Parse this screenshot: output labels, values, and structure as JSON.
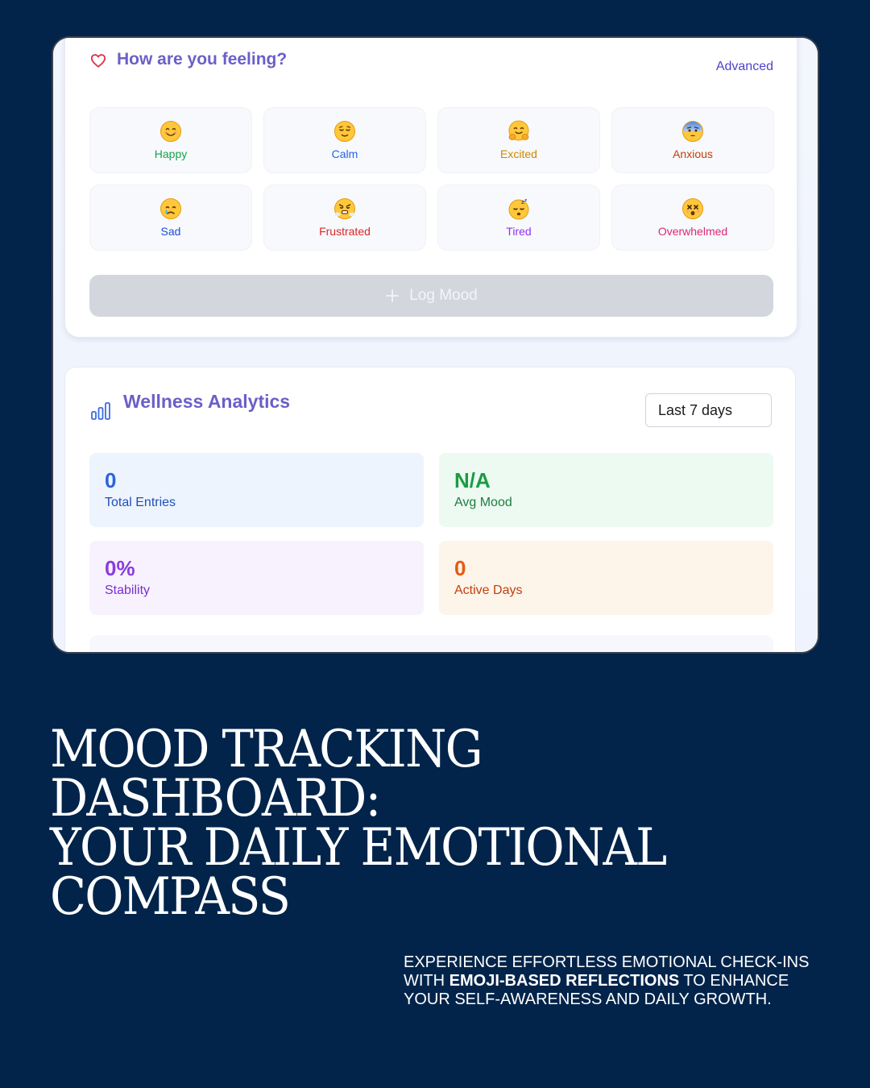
{
  "mood": {
    "title": "How are you feeling?",
    "advanced_label": "Advanced",
    "options": [
      {
        "label": "Happy",
        "icon": "smiling-face-icon",
        "color": "#16a34a",
        "emoji": "😊"
      },
      {
        "label": "Calm",
        "icon": "relieved-face-icon",
        "color": "#2563eb",
        "emoji": "😌"
      },
      {
        "label": "Excited",
        "icon": "hugging-face-icon",
        "color": "#ca8a04",
        "emoji": "🤗"
      },
      {
        "label": "Anxious",
        "icon": "anxious-face-icon",
        "color": "#c2410c",
        "emoji": "😰"
      },
      {
        "label": "Sad",
        "icon": "crying-face-icon",
        "color": "#1d4ed8",
        "emoji": "😢"
      },
      {
        "label": "Frustrated",
        "icon": "steaming-face-icon",
        "color": "#dc2626",
        "emoji": "😤"
      },
      {
        "label": "Tired",
        "icon": "sleeping-face-icon",
        "color": "#9333ea",
        "emoji": "😴"
      },
      {
        "label": "Overwhelmed",
        "icon": "dizzy-face-icon",
        "color": "#db2777",
        "emoji": "😵"
      }
    ],
    "log_label": "Log Mood"
  },
  "analytics": {
    "title": "Wellness Analytics",
    "range": "Last 7 days",
    "stats": [
      {
        "value": "0",
        "label": "Total Entries"
      },
      {
        "value": "N/A",
        "label": "Avg Mood"
      },
      {
        "value": "0%",
        "label": "Stability"
      },
      {
        "value": "0",
        "label": "Active Days"
      }
    ]
  },
  "headline": {
    "line1": "MOOD TRACKING DASHBOARD:",
    "line2": "YOUR DAILY EMOTIONAL",
    "line3": "COMPASS"
  },
  "subcopy": {
    "part1": "Experience effortless emotional check-ins with ",
    "bold": "emoji-based reflections",
    "part2": " to enhance your self-awareness and daily growth."
  },
  "colors": {
    "background": "#02244a",
    "accent_title": "#6b5fc8",
    "link": "#4d44c9"
  }
}
